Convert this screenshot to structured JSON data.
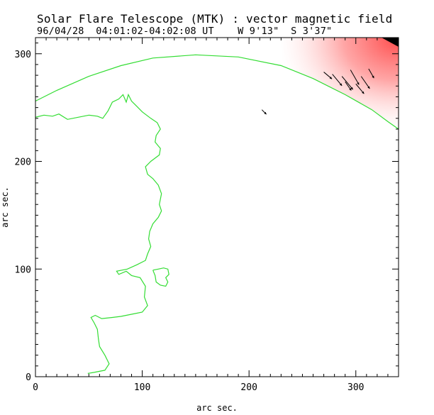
{
  "chart_data": {
    "type": "vector-magnetogram",
    "title": "Solar Flare Telescope (MTK) : vector magnetic field",
    "subtitle": "96/04/28  04:01:02-04:02:08 UT    W 9'13\"  S 3'37\"",
    "xlabel": "arc sec.",
    "ylabel": "arc sec.",
    "xlim": [
      0,
      340
    ],
    "ylim": [
      0,
      315
    ],
    "x_ticks": [
      0,
      100,
      200,
      300
    ],
    "y_ticks": [
      0,
      100,
      200,
      300
    ],
    "limb_arc": [
      [
        0,
        256
      ],
      [
        20,
        266
      ],
      [
        50,
        279
      ],
      [
        80,
        289
      ],
      [
        110,
        296
      ],
      [
        150,
        299
      ],
      [
        190,
        297
      ],
      [
        230,
        289
      ],
      [
        260,
        277
      ],
      [
        290,
        262
      ],
      [
        315,
        248
      ],
      [
        330,
        237
      ],
      [
        340,
        230
      ]
    ],
    "neutral_line": [
      [
        49,
        3
      ],
      [
        55,
        4
      ],
      [
        65,
        6
      ],
      [
        69,
        12
      ],
      [
        65,
        20
      ],
      [
        60,
        28
      ],
      [
        59,
        35
      ],
      [
        58,
        44
      ],
      [
        55,
        50
      ],
      [
        52,
        55
      ],
      [
        56,
        57
      ],
      [
        62,
        54
      ],
      [
        72,
        55
      ],
      [
        80,
        56
      ],
      [
        90,
        58
      ],
      [
        100,
        60
      ],
      [
        105,
        66
      ],
      [
        102,
        74
      ],
      [
        103,
        84
      ],
      [
        98,
        92
      ],
      [
        90,
        94
      ],
      [
        85,
        98
      ],
      [
        78,
        95
      ],
      [
        76,
        98
      ],
      [
        86,
        100
      ],
      [
        95,
        104
      ],
      [
        103,
        108
      ],
      [
        105,
        114
      ],
      [
        108,
        121
      ],
      [
        106,
        128
      ],
      [
        107,
        135
      ],
      [
        110,
        142
      ],
      [
        115,
        148
      ],
      [
        118,
        154
      ],
      [
        116,
        160
      ],
      [
        118,
        170
      ],
      [
        115,
        178
      ],
      [
        110,
        184
      ],
      [
        105,
        188
      ],
      [
        103,
        195
      ],
      [
        108,
        200
      ],
      [
        116,
        206
      ],
      [
        117,
        212
      ],
      [
        112,
        218
      ],
      [
        113,
        224
      ],
      [
        117,
        230
      ],
      [
        114,
        236
      ],
      [
        108,
        240
      ],
      [
        100,
        246
      ],
      [
        94,
        252
      ],
      [
        90,
        256
      ],
      [
        87,
        262
      ],
      [
        85,
        255
      ],
      [
        82,
        262
      ],
      [
        78,
        258
      ],
      [
        72,
        255
      ],
      [
        68,
        247
      ],
      [
        63,
        240
      ],
      [
        58,
        242
      ],
      [
        50,
        243
      ],
      [
        40,
        241
      ],
      [
        30,
        239
      ],
      [
        22,
        244
      ],
      [
        16,
        242
      ],
      [
        8,
        243
      ],
      [
        0,
        241
      ]
    ],
    "island_contour": [
      [
        110,
        99
      ],
      [
        115,
        100
      ],
      [
        120,
        101
      ],
      [
        124,
        100
      ],
      [
        125,
        95
      ],
      [
        122,
        92
      ],
      [
        124,
        88
      ],
      [
        122,
        84
      ],
      [
        117,
        85
      ],
      [
        113,
        88
      ],
      [
        112,
        94
      ],
      [
        110,
        99
      ]
    ],
    "vectors": [
      {
        "x": 270,
        "y": 283,
        "angle": -40,
        "length": 10
      },
      {
        "x": 278,
        "y": 281,
        "angle": -50,
        "length": 14
      },
      {
        "x": 287,
        "y": 279,
        "angle": -50,
        "length": 16
      },
      {
        "x": 295,
        "y": 285,
        "angle": -60,
        "length": 16
      },
      {
        "x": 305,
        "y": 279,
        "angle": -55,
        "length": 14
      },
      {
        "x": 300,
        "y": 272,
        "angle": -50,
        "length": 12
      },
      {
        "x": 290,
        "y": 274,
        "angle": -55,
        "length": 10
      },
      {
        "x": 312,
        "y": 286,
        "angle": -60,
        "length": 10
      },
      {
        "x": 212,
        "y": 248,
        "angle": -45,
        "length": 6
      }
    ],
    "colors": {
      "contour": "#33dd33",
      "field_high": "#ff5050",
      "field_low": "#ffe2e2",
      "vector": "#000000",
      "background": "#ffffff"
    }
  }
}
